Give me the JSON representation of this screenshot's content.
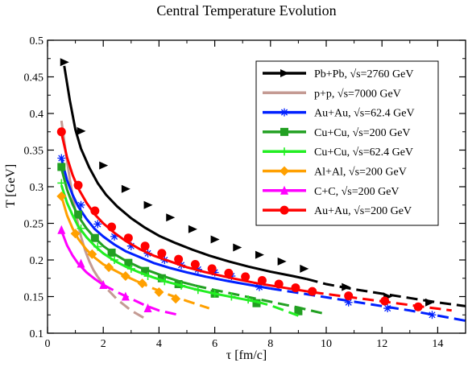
{
  "chart_data": {
    "type": "line",
    "title": "Central Temperature Evolution",
    "xlabel": "τ [fm/c]",
    "ylabel": "T [GeV]",
    "xlim": [
      0,
      15
    ],
    "ylim": [
      0.1,
      0.5
    ],
    "xticks": [
      0,
      2,
      4,
      6,
      8,
      10,
      12,
      14
    ],
    "yticks": [
      0.1,
      0.15,
      0.2,
      0.25,
      0.3,
      0.35,
      0.4,
      0.45,
      0.5
    ],
    "xtick_labels": [
      "0",
      "2",
      "4",
      "6",
      "8",
      "10",
      "12",
      "14"
    ],
    "ytick_labels": [
      "0.1",
      "0.15",
      "0.2",
      "0.25",
      "0.3",
      "0.35",
      "0.4",
      "0.45",
      "0.5"
    ],
    "legend_position": "top-right",
    "series": [
      {
        "name": "Pb+Pb,  √s=2760 GeV",
        "color": "#000000",
        "marker": "triangle-right",
        "solid_x": [
          0.6,
          0.8,
          1.0,
          1.2,
          1.5,
          1.8,
          2.1,
          2.5,
          3.0,
          3.5,
          4.0,
          4.6,
          5.2,
          5.8,
          6.5,
          7.2,
          8.0,
          8.8,
          9.3
        ],
        "solid_y": [
          0.465,
          0.418,
          0.378,
          0.352,
          0.326,
          0.305,
          0.289,
          0.273,
          0.257,
          0.244,
          0.233,
          0.223,
          0.214,
          0.206,
          0.198,
          0.191,
          0.184,
          0.178,
          0.174
        ],
        "dashed_x": [
          9.3,
          10.0,
          11.0,
          12.0,
          13.0,
          14.0,
          15.0
        ],
        "dashed_y": [
          0.174,
          0.167,
          0.16,
          0.154,
          0.148,
          0.142,
          0.137
        ],
        "marker_x": [
          0.6,
          1.2,
          2.0,
          2.8,
          3.6,
          4.4,
          5.2,
          6.0,
          6.8,
          7.6,
          8.4,
          9.2,
          10.7,
          12.2,
          13.7
        ],
        "marker_y": [
          0.47,
          0.376,
          0.329,
          0.297,
          0.275,
          0.258,
          0.242,
          0.228,
          0.217,
          0.207,
          0.198,
          0.188,
          0.163,
          0.15,
          0.142
        ]
      },
      {
        "name": "p+p,  √s=7000 GeV",
        "color": "#c49a93",
        "marker": "none",
        "solid_x": [
          0.5,
          0.6,
          0.7,
          0.8,
          0.9,
          1.0,
          1.1,
          1.2,
          1.35,
          1.5,
          1.65,
          1.8
        ],
        "solid_y": [
          0.39,
          0.362,
          0.336,
          0.31,
          0.288,
          0.266,
          0.248,
          0.232,
          0.213,
          0.198,
          0.186,
          0.177
        ],
        "dashed_x": [
          1.8,
          2.1,
          2.5,
          3.0,
          3.5
        ],
        "dashed_y": [
          0.177,
          0.162,
          0.146,
          0.131,
          0.12
        ],
        "marker_x": [],
        "marker_y": []
      },
      {
        "name": "Au+Au,  √s=62.4 GeV",
        "color": "#0020ff",
        "marker": "star",
        "solid_x": [
          0.5,
          0.7,
          0.9,
          1.1,
          1.4,
          1.7,
          2.0,
          2.4,
          2.8,
          3.3,
          3.8,
          4.4,
          5.0,
          5.7,
          6.5,
          7.4,
          8.0
        ],
        "solid_y": [
          0.338,
          0.309,
          0.289,
          0.273,
          0.256,
          0.242,
          0.232,
          0.221,
          0.212,
          0.204,
          0.196,
          0.189,
          0.183,
          0.177,
          0.171,
          0.165,
          0.161
        ],
        "dashed_x": [
          8.0,
          9.0,
          10.0,
          11.0,
          12.0,
          13.0,
          14.0,
          15.0
        ],
        "dashed_y": [
          0.161,
          0.155,
          0.149,
          0.143,
          0.137,
          0.131,
          0.124,
          0.117
        ],
        "marker_x": [
          0.5,
          1.2,
          1.8,
          2.4,
          3.0,
          3.6,
          4.2,
          4.8,
          5.4,
          6.0,
          6.6,
          7.6,
          10.8,
          12.2,
          13.8
        ],
        "marker_y": [
          0.339,
          0.275,
          0.249,
          0.232,
          0.219,
          0.209,
          0.2,
          0.193,
          0.187,
          0.183,
          0.178,
          0.163,
          0.142,
          0.134,
          0.125
        ]
      },
      {
        "name": "Cu+Cu,  √s=200 GeV",
        "color": "#22a022",
        "marker": "square",
        "solid_x": [
          0.5,
          0.7,
          0.9,
          1.1,
          1.4,
          1.7,
          2.0,
          2.4,
          2.8,
          3.3,
          3.8,
          4.3,
          4.8,
          5.3
        ],
        "solid_y": [
          0.325,
          0.296,
          0.276,
          0.26,
          0.243,
          0.23,
          0.219,
          0.208,
          0.199,
          0.19,
          0.183,
          0.176,
          0.17,
          0.165
        ],
        "dashed_x": [
          5.3,
          6.0,
          7.0,
          8.0,
          9.0,
          10.0
        ],
        "dashed_y": [
          0.165,
          0.159,
          0.151,
          0.143,
          0.135,
          0.126
        ],
        "marker_x": [
          0.5,
          1.1,
          1.7,
          2.3,
          2.9,
          3.5,
          4.1,
          4.7,
          6.0,
          7.5,
          9.0
        ],
        "marker_y": [
          0.327,
          0.262,
          0.23,
          0.21,
          0.196,
          0.185,
          0.175,
          0.167,
          0.154,
          0.141,
          0.13
        ]
      },
      {
        "name": "Cu+Cu,  √s=62.4 GeV",
        "color": "#22ee22",
        "marker": "plus",
        "solid_x": [
          0.5,
          0.7,
          0.9,
          1.1,
          1.4,
          1.7,
          2.0,
          2.4,
          2.8,
          3.3,
          3.8,
          4.3,
          4.8,
          5.3,
          6.0,
          6.8,
          7.5
        ],
        "solid_y": [
          0.302,
          0.278,
          0.261,
          0.246,
          0.231,
          0.219,
          0.209,
          0.199,
          0.191,
          0.183,
          0.176,
          0.17,
          0.165,
          0.16,
          0.154,
          0.148,
          0.143
        ],
        "dashed_x": [
          7.5,
          8.0,
          8.5,
          9.0
        ],
        "dashed_y": [
          0.143,
          0.138,
          0.131,
          0.124
        ],
        "marker_x": [
          0.5,
          1.2,
          1.8,
          2.4,
          3.0,
          3.6,
          4.2,
          4.8,
          5.4,
          6.0,
          6.6,
          7.2
        ],
        "marker_y": [
          0.305,
          0.243,
          0.218,
          0.2,
          0.188,
          0.178,
          0.171,
          0.165,
          0.159,
          0.154,
          0.15,
          0.146
        ]
      },
      {
        "name": "Al+Al,  √s=200 GeV",
        "color": "#ffa000",
        "marker": "diamond",
        "solid_x": [
          0.5,
          0.7,
          0.9,
          1.1,
          1.4,
          1.7,
          2.0,
          2.4,
          2.8,
          3.2
        ],
        "solid_y": [
          0.287,
          0.261,
          0.243,
          0.229,
          0.214,
          0.203,
          0.194,
          0.186,
          0.178,
          0.171
        ],
        "dashed_x": [
          3.2,
          3.8,
          4.4,
          5.0,
          5.8
        ],
        "dashed_y": [
          0.171,
          0.161,
          0.152,
          0.144,
          0.134
        ],
        "marker_x": [
          0.5,
          1.0,
          1.6,
          2.2,
          2.8,
          3.4,
          4.0,
          4.6
        ],
        "marker_y": [
          0.287,
          0.236,
          0.208,
          0.19,
          0.178,
          0.168,
          0.156,
          0.147
        ]
      },
      {
        "name": "C+C,  √s=200 GeV",
        "color": "#ff00ff",
        "marker": "triangle-up",
        "solid_x": [
          0.5,
          0.7,
          0.9,
          1.1,
          1.4,
          1.7,
          2.0
        ],
        "solid_y": [
          0.24,
          0.22,
          0.206,
          0.195,
          0.183,
          0.174,
          0.166
        ],
        "dashed_x": [
          2.0,
          2.5,
          3.0,
          3.5,
          4.0,
          4.7
        ],
        "dashed_y": [
          0.166,
          0.156,
          0.147,
          0.138,
          0.131,
          0.125
        ],
        "marker_x": [
          0.5,
          1.2,
          2.0,
          2.8,
          3.6
        ],
        "marker_y": [
          0.241,
          0.195,
          0.166,
          0.15,
          0.134
        ]
      },
      {
        "name": "Au+Au,  √s=200 GeV",
        "color": "#ff0000",
        "marker": "circle",
        "solid_x": [
          0.5,
          0.7,
          0.9,
          1.1,
          1.4,
          1.7,
          2.0,
          2.4,
          2.8,
          3.3,
          3.8,
          4.4,
          5.0,
          5.7,
          6.5,
          7.4,
          8.5,
          9.5
        ],
        "solid_y": [
          0.373,
          0.34,
          0.316,
          0.298,
          0.278,
          0.262,
          0.25,
          0.237,
          0.226,
          0.215,
          0.206,
          0.198,
          0.19,
          0.183,
          0.176,
          0.169,
          0.162,
          0.156
        ],
        "dashed_x": [
          9.5,
          10.5,
          11.5,
          12.5,
          13.5,
          14.5
        ],
        "dashed_y": [
          0.156,
          0.151,
          0.146,
          0.141,
          0.136,
          0.131
        ],
        "marker_x": [
          0.5,
          1.1,
          1.7,
          2.3,
          2.9,
          3.5,
          4.1,
          4.7,
          5.3,
          5.9,
          6.5,
          7.1,
          7.7,
          8.3,
          8.9,
          9.5,
          10.8,
          12.1,
          13.3
        ],
        "marker_y": [
          0.375,
          0.302,
          0.267,
          0.245,
          0.23,
          0.219,
          0.209,
          0.201,
          0.194,
          0.188,
          0.182,
          0.177,
          0.172,
          0.167,
          0.162,
          0.157,
          0.151,
          0.144,
          0.136
        ]
      }
    ]
  }
}
